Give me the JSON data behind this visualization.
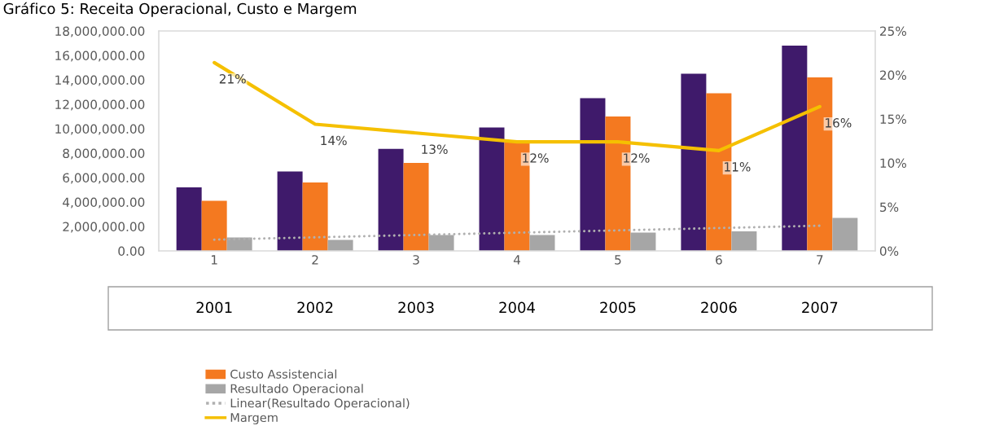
{
  "chart_data": {
    "type": "bar",
    "title": "Gráfico 5: Receita Operacional, Custo e Margem",
    "categories": [
      "1",
      "2",
      "3",
      "4",
      "5",
      "6",
      "7"
    ],
    "series": [
      {
        "color": "#3f1a6b",
        "values": [
          5200000,
          6500000,
          8350000,
          10100000,
          12500000,
          14500000,
          16800000
        ]
      },
      {
        "name": "Custo Assistencial",
        "color": "#f47920",
        "values": [
          4100000,
          5600000,
          7200000,
          9000000,
          11000000,
          12900000,
          14200000
        ]
      },
      {
        "name": "Resultado Operacional",
        "color": "#a6a6a6",
        "values": [
          1100000,
          900000,
          1300000,
          1300000,
          1500000,
          1600000,
          2700000
        ]
      },
      {
        "name": "Linear(Resultado Operacional)",
        "type": "line",
        "line_style": "dotted",
        "color": "#b0b0b0",
        "x": [
          "1",
          "7"
        ],
        "values": [
          920000,
          2060000
        ]
      },
      {
        "name": "Margem",
        "type": "line",
        "axis": "y2",
        "color": "#f5c000",
        "values": [
          21.4,
          14.4,
          13.4,
          12.4,
          12.4,
          11.4,
          16.4
        ],
        "value_labels": [
          "21%",
          "14%",
          "13%",
          "12%",
          "12%",
          "11%",
          "16%"
        ]
      }
    ],
    "ylim": [
      0,
      18000000
    ],
    "yticks": [
      {
        "value": 0,
        "label": "0.00"
      },
      {
        "value": 2000000,
        "label": "2,000,000.00"
      },
      {
        "value": 4000000,
        "label": "4,000,000.00"
      },
      {
        "value": 6000000,
        "label": "6,000,000.00"
      },
      {
        "value": 8000000,
        "label": "8,000,000.00"
      },
      {
        "value": 10000000,
        "label": "10,000,000.00"
      },
      {
        "value": 12000000,
        "label": "12,000,000.00"
      },
      {
        "value": 14000000,
        "label": "14,000,000.00"
      },
      {
        "value": 16000000,
        "label": "16,000,000.00"
      },
      {
        "value": 18000000,
        "label": "18,000,000.00"
      }
    ],
    "y2lim": [
      0,
      25
    ],
    "y2ticks": [
      {
        "value": 0,
        "label": "0%"
      },
      {
        "value": 5,
        "label": "5%"
      },
      {
        "value": 10,
        "label": "10%"
      },
      {
        "value": 15,
        "label": "15%"
      },
      {
        "value": 20,
        "label": "20%"
      },
      {
        "value": 25,
        "label": "25%"
      }
    ],
    "annotations": [
      "2001",
      "2002",
      "2003",
      "2004",
      "2005",
      "2006",
      "2007"
    ],
    "grid": false,
    "legend": "bottom"
  }
}
